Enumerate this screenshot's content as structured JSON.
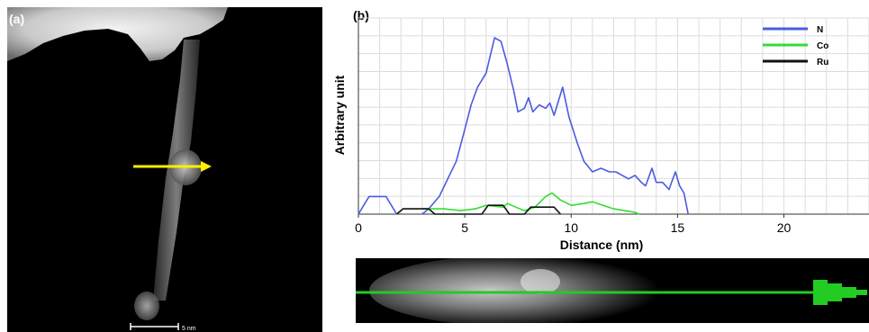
{
  "panel_a": {
    "label": "(a)",
    "scale_bar_label": "5 nm",
    "colors": {
      "arrow": "#ffee00",
      "background": "#000000"
    }
  },
  "panel_b": {
    "label": "(b)"
  },
  "chart_data": {
    "type": "line",
    "title": "",
    "xlabel": "Distance (nm)",
    "ylabel": "Arbitrary unit",
    "xlim": [
      0,
      24
    ],
    "xticks": [
      0,
      5,
      10,
      15,
      20
    ],
    "grid": true,
    "legend_position": "top-right",
    "series": [
      {
        "name": "N",
        "color": "#4a5ce0",
        "points": [
          [
            3.0,
            0
          ],
          [
            3.3,
            3
          ],
          [
            3.8,
            10
          ],
          [
            4.2,
            20
          ],
          [
            4.6,
            30
          ],
          [
            5.0,
            48
          ],
          [
            5.3,
            62
          ],
          [
            5.6,
            72
          ],
          [
            6.0,
            80
          ],
          [
            6.2,
            90
          ],
          [
            6.4,
            100
          ],
          [
            6.7,
            98
          ],
          [
            7.0,
            85
          ],
          [
            7.2,
            75
          ],
          [
            7.3,
            70
          ],
          [
            7.5,
            58
          ],
          [
            7.8,
            60
          ],
          [
            8.0,
            66
          ],
          [
            8.2,
            58
          ],
          [
            8.5,
            62
          ],
          [
            8.8,
            60
          ],
          [
            9.0,
            63
          ],
          [
            9.2,
            56
          ],
          [
            9.6,
            72
          ],
          [
            9.9,
            55
          ],
          [
            10.3,
            40
          ],
          [
            10.6,
            30
          ],
          [
            11.0,
            24
          ],
          [
            11.4,
            26
          ],
          [
            11.8,
            24
          ],
          [
            12.1,
            24
          ],
          [
            12.4,
            22
          ],
          [
            12.7,
            20
          ],
          [
            13.0,
            22
          ],
          [
            13.3,
            18
          ],
          [
            13.5,
            16
          ],
          [
            13.8,
            26
          ],
          [
            14.0,
            18
          ],
          [
            14.3,
            18
          ],
          [
            14.6,
            14
          ],
          [
            14.9,
            24
          ],
          [
            15.1,
            16
          ],
          [
            15.3,
            12
          ],
          [
            15.5,
            0
          ]
        ]
      },
      {
        "name": "Co",
        "color": "#33dd33",
        "points": [
          [
            3.0,
            3
          ],
          [
            4.0,
            3
          ],
          [
            4.8,
            2
          ],
          [
            5.5,
            3
          ],
          [
            6.0,
            5
          ],
          [
            6.8,
            4
          ],
          [
            7.0,
            6
          ],
          [
            7.4,
            4
          ],
          [
            7.8,
            2
          ],
          [
            8.3,
            4
          ],
          [
            8.8,
            10
          ],
          [
            9.1,
            12
          ],
          [
            9.5,
            8
          ],
          [
            10.0,
            5
          ],
          [
            10.6,
            6
          ],
          [
            11.0,
            7
          ],
          [
            11.5,
            5
          ],
          [
            12.0,
            3
          ],
          [
            12.5,
            2
          ],
          [
            13.0,
            1
          ],
          [
            13.2,
            0
          ]
        ]
      },
      {
        "name": "Ru",
        "color": "#111111",
        "points": [
          [
            1.8,
            0
          ],
          [
            2.1,
            3
          ],
          [
            3.3,
            3
          ],
          [
            3.6,
            0
          ],
          [
            5.8,
            0
          ],
          [
            6.1,
            5
          ],
          [
            6.8,
            5
          ],
          [
            7.1,
            0
          ],
          [
            7.8,
            0
          ],
          [
            8.1,
            4
          ],
          [
            9.2,
            4
          ],
          [
            9.5,
            0
          ]
        ]
      },
      {
        "name": "",
        "color": "#4a5ce0",
        "points": [
          [
            0.0,
            0
          ],
          [
            0.5,
            10
          ],
          [
            1.3,
            10
          ],
          [
            1.8,
            0
          ]
        ]
      }
    ]
  },
  "strip": {
    "colors": {
      "line": "#22cc22",
      "background": "#000000"
    }
  }
}
